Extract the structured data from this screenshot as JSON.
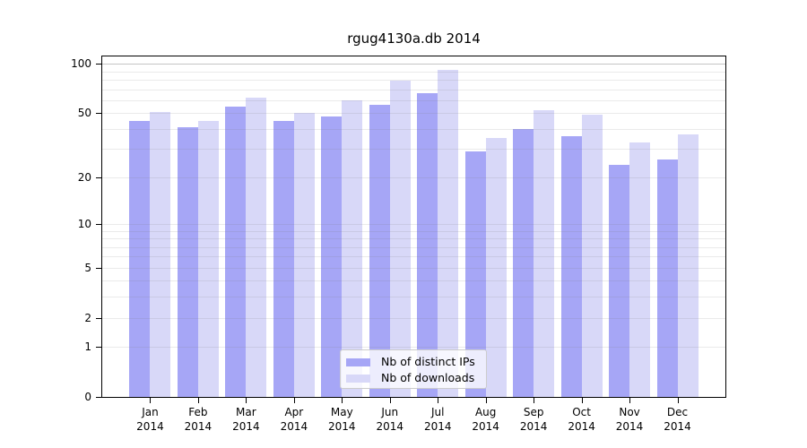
{
  "chart_data": {
    "type": "bar",
    "title": "rgug4130a.db 2014",
    "categories": [
      "Jan 2014",
      "Feb 2014",
      "Mar 2014",
      "Apr 2014",
      "May 2014",
      "Jun 2014",
      "Jul 2014",
      "Aug 2014",
      "Sep 2014",
      "Oct 2014",
      "Nov 2014",
      "Dec 2014"
    ],
    "series": [
      {
        "name": "Nb of distinct IPs",
        "color": "#a6a6f6",
        "values": [
          45,
          41,
          55,
          45,
          48,
          56,
          66,
          29,
          40,
          36,
          24,
          26
        ]
      },
      {
        "name": "Nb of downloads",
        "color": "#d8d8f8",
        "values": [
          51,
          45,
          62,
          50,
          60,
          79,
          92,
          35,
          52,
          49,
          33,
          37
        ]
      }
    ],
    "yscale": "log1p",
    "ylim": [
      0,
      111
    ],
    "y_ticks": [
      0,
      1,
      2,
      5,
      10,
      20,
      50,
      100
    ],
    "y_gridlines_minor": [
      1,
      2,
      3,
      4,
      5,
      6,
      7,
      8,
      9,
      10,
      20,
      30,
      40,
      50,
      60,
      70,
      80,
      90
    ],
    "y_gridlines_major": [
      100
    ],
    "grid": true,
    "legend": {
      "position": "lower center",
      "labels": [
        "Nb of distinct IPs",
        "Nb of downloads"
      ]
    }
  }
}
